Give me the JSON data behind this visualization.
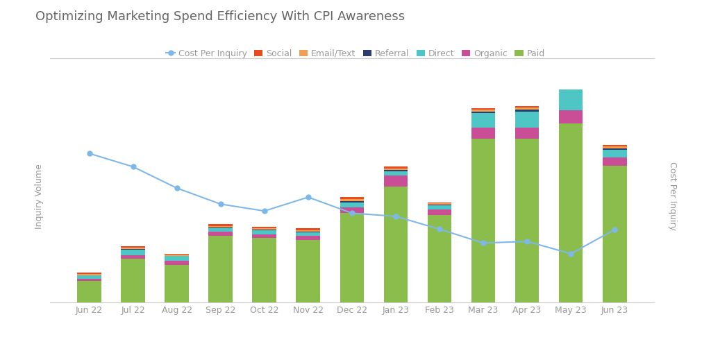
{
  "title": "Optimizing Marketing Spend Efficiency With CPI Awareness",
  "categories": [
    "Jun 22",
    "Jul 22",
    "Aug 22",
    "Sep 22",
    "Oct 22",
    "Nov 22",
    "Dec 22",
    "Jan 23",
    "Feb 23",
    "Mar 23",
    "Apr 23",
    "May 23",
    "Jun 23"
  ],
  "paid": [
    58,
    115,
    100,
    175,
    170,
    165,
    235,
    305,
    230,
    430,
    430,
    470,
    360
  ],
  "organic": [
    5,
    10,
    10,
    12,
    10,
    10,
    15,
    30,
    15,
    30,
    30,
    35,
    22
  ],
  "direct": [
    8,
    14,
    12,
    8,
    10,
    10,
    14,
    10,
    10,
    38,
    42,
    75,
    20
  ],
  "referral": [
    1,
    2,
    1,
    2,
    2,
    2,
    3,
    3,
    2,
    4,
    5,
    5,
    4
  ],
  "email": [
    3,
    3,
    3,
    4,
    4,
    4,
    5,
    5,
    4,
    5,
    5,
    5,
    5
  ],
  "social": [
    5,
    5,
    3,
    5,
    4,
    4,
    5,
    5,
    3,
    4,
    4,
    5,
    4
  ],
  "cpi": [
    3.3,
    3.05,
    2.65,
    2.35,
    2.22,
    2.48,
    2.18,
    2.12,
    1.88,
    1.62,
    1.65,
    1.42,
    1.87
  ],
  "cpi_ylim": [
    0.5,
    4.5
  ],
  "bar_ylim": [
    0,
    560
  ],
  "colors": {
    "paid": "#8BBD4C",
    "organic": "#C94E96",
    "direct": "#4FC6C6",
    "referral": "#2C3E6B",
    "email": "#F0A050",
    "social": "#E84C1E",
    "cpi_line": "#7EB8E8"
  },
  "ylabel_left": "Inquiry Volume",
  "ylabel_right": "Cost Per Inquiry",
  "background_color": "#ffffff",
  "grid_color": "#cccccc",
  "title_color": "#666666",
  "axis_color": "#999999",
  "title_fontsize": 13,
  "label_fontsize": 9,
  "tick_fontsize": 9
}
